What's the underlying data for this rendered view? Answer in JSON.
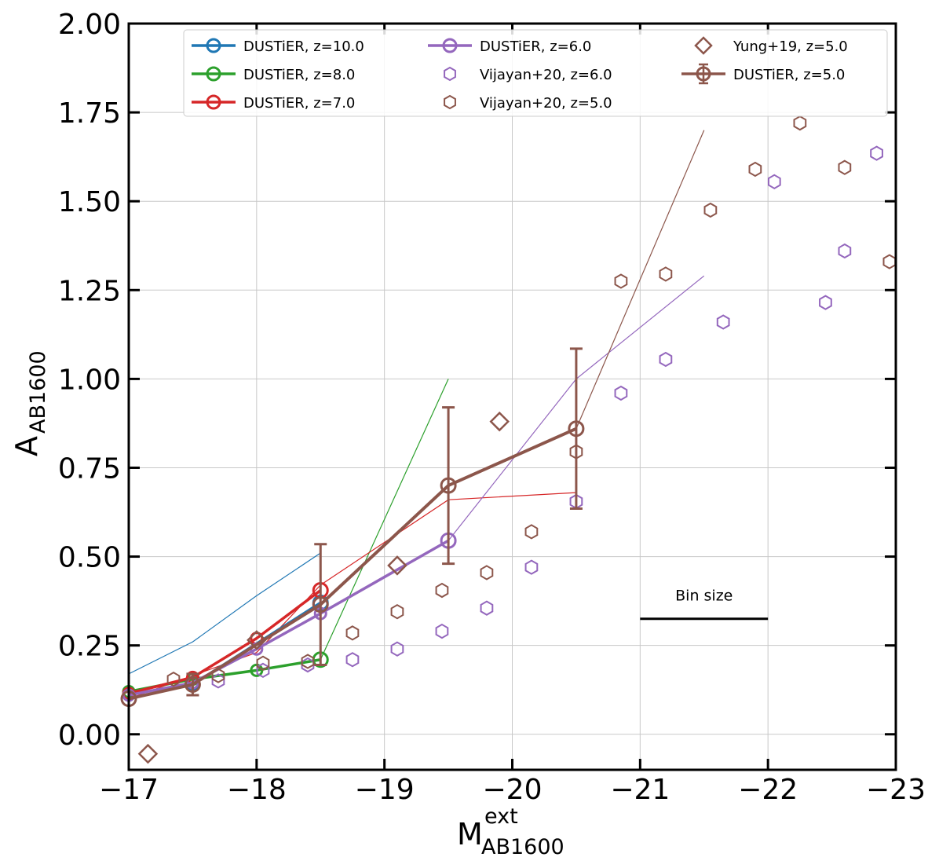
{
  "chart_data": {
    "type": "line",
    "xlabel": "M",
    "xlabel_sup": "ext",
    "xlabel_sub": "AB1600",
    "ylabel": "A",
    "ylabel_sub": "AB1600",
    "xlim": [
      -17,
      -23
    ],
    "ylim": [
      -0.1,
      2.0
    ],
    "x_ticks": [
      -17,
      -18,
      -19,
      -20,
      -21,
      -22,
      -23
    ],
    "x_tick_labels": [
      "−17",
      "−18",
      "−19",
      "−20",
      "−21",
      "−22",
      "−23"
    ],
    "y_ticks": [
      0.0,
      0.25,
      0.5,
      0.75,
      1.0,
      1.25,
      1.5,
      1.75,
      2.0
    ],
    "y_tick_labels": [
      "0.00",
      "0.25",
      "0.50",
      "0.75",
      "1.00",
      "1.25",
      "1.50",
      "1.75",
      "2.00"
    ],
    "grid": true,
    "legend_position": "top",
    "colors": {
      "blue": "#1f77b4",
      "green": "#2ca02c",
      "red": "#d62728",
      "purple": "#9467bd",
      "brown": "#8c564b"
    },
    "series": [
      {
        "name": "DUSTiER, z=10.0",
        "kind": "line",
        "color": "#1f77b4",
        "x": [
          -17.5,
          -18.5
        ],
        "y": [
          0.14,
          0.37
        ]
      },
      {
        "name": "DUSTiER, z=8.0",
        "kind": "line",
        "color": "#2ca02c",
        "x": [
          -17.0,
          -17.5,
          -18.0,
          -18.5
        ],
        "y": [
          0.12,
          0.155,
          0.18,
          0.21
        ]
      },
      {
        "name": "DUSTiER, z=7.0",
        "kind": "line",
        "color": "#d62728",
        "x": [
          -17.0,
          -17.5,
          -18.0,
          -18.5
        ],
        "y": [
          0.115,
          0.16,
          0.27,
          0.405
        ]
      },
      {
        "name": "DUSTiER, z=6.0",
        "kind": "line",
        "color": "#9467bd",
        "x": [
          -17.0,
          -17.5,
          -18.0,
          -18.5,
          -19.5
        ],
        "y": [
          0.11,
          0.145,
          0.24,
          0.34,
          0.545
        ]
      },
      {
        "name": "Vijayan+20, z=6.0",
        "kind": "hexagon",
        "color": "#9467bd",
        "x": [
          -17.7,
          -18.05,
          -18.4,
          -18.75,
          -19.1,
          -19.45,
          -19.8,
          -20.15,
          -20.5,
          -20.85,
          -21.2,
          -21.65,
          -22.05,
          -22.45,
          -22.6,
          -22.85
        ],
        "y": [
          0.15,
          0.18,
          0.195,
          0.21,
          0.24,
          0.29,
          0.355,
          0.47,
          0.655,
          0.96,
          1.055,
          1.16,
          1.555,
          1.215,
          1.36,
          1.635
        ]
      },
      {
        "name": "Vijayan+20, z=5.0",
        "kind": "hexagon",
        "color": "#8c564b",
        "x": [
          -17.35,
          -17.7,
          -18.05,
          -18.4,
          -18.75,
          -19.1,
          -19.45,
          -19.8,
          -20.15,
          -20.5,
          -20.85,
          -21.2,
          -21.55,
          -21.9,
          -22.25,
          -22.6,
          -22.95
        ],
        "y": [
          0.155,
          0.165,
          0.2,
          0.205,
          0.285,
          0.345,
          0.405,
          0.455,
          0.57,
          0.795,
          1.275,
          1.295,
          1.475,
          1.59,
          1.72,
          1.595,
          1.33
        ]
      },
      {
        "name": "Yung+19, z=5.0",
        "kind": "diamond",
        "color": "#8c564b",
        "x": [
          -17.15,
          -18.0,
          -19.1,
          -19.9
        ],
        "y": [
          -0.055,
          0.265,
          0.475,
          0.88
        ]
      },
      {
        "name": "DUSTiER, z=5.0",
        "kind": "errorbar",
        "color": "#8c564b",
        "x": [
          -17.0,
          -17.5,
          -18.5,
          -19.5,
          -20.5
        ],
        "y": [
          0.1,
          0.14,
          0.365,
          0.7,
          0.86
        ],
        "yerr": [
          null,
          0.03,
          0.17,
          0.22,
          0.225
        ]
      }
    ],
    "thin_lines": [
      {
        "color": "#1f77b4",
        "x": [
          -17.0,
          -17.5,
          -18.0,
          -18.5
        ],
        "y": [
          0.17,
          0.26,
          0.39,
          0.51
        ]
      },
      {
        "color": "#2ca02c",
        "x": [
          -18.5,
          -19.5
        ],
        "y": [
          0.21,
          1.0
        ]
      },
      {
        "color": "#d62728",
        "x": [
          -17.0,
          -18.0,
          -18.5,
          -19.5,
          -20.5
        ],
        "y": [
          0.1,
          0.23,
          0.42,
          0.66,
          0.68
        ]
      },
      {
        "color": "#9467bd",
        "x": [
          -19.5,
          -20.5,
          -21.5
        ],
        "y": [
          0.545,
          1.0,
          1.29
        ]
      },
      {
        "color": "#8c564b",
        "x": [
          -20.5,
          -21.5
        ],
        "y": [
          0.86,
          1.7
        ]
      }
    ],
    "annotation": {
      "label": "Bin size",
      "x": [
        -21.0,
        -22.0
      ],
      "y": 0.325
    }
  }
}
